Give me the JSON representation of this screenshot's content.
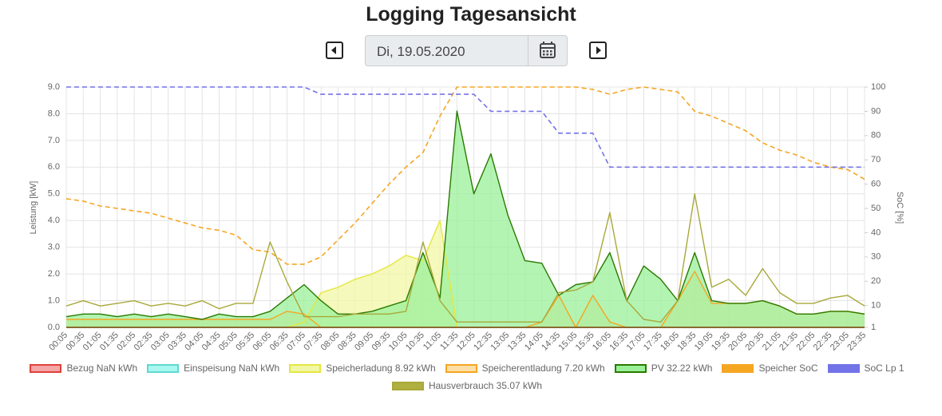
{
  "page": {
    "title": "Logging Tagesansicht",
    "date": "Di, 19.05.2020"
  },
  "chart_data": {
    "type": "line",
    "ylabel": "Leistung [kW]",
    "y2label": "SoC [%]",
    "categories": [
      "00:05",
      "00:35",
      "01:05",
      "01:35",
      "02:05",
      "02:35",
      "03:05",
      "03:35",
      "04:05",
      "04:35",
      "05:05",
      "05:35",
      "06:05",
      "06:35",
      "07:05",
      "07:35",
      "08:05",
      "08:35",
      "09:05",
      "09:35",
      "10:05",
      "10:35",
      "11:05",
      "11:35",
      "12:05",
      "12:35",
      "13:05",
      "13:35",
      "14:05",
      "14:35",
      "15:05",
      "15:35",
      "16:05",
      "16:35",
      "17:05",
      "17:35",
      "18:05",
      "18:35",
      "19:05",
      "19:35",
      "20:05",
      "20:35",
      "21:05",
      "21:35",
      "22:05",
      "22:35",
      "23:05",
      "23:35"
    ],
    "ylim": [
      0,
      9
    ],
    "yticks": [
      {
        "value": 0,
        "label": "0.0"
      },
      {
        "value": 1,
        "label": "1.0"
      },
      {
        "value": 2,
        "label": "2.0"
      },
      {
        "value": 3,
        "label": "3.0"
      },
      {
        "value": 4,
        "label": "4.0"
      },
      {
        "value": 5,
        "label": "5.0"
      },
      {
        "value": 6,
        "label": "6.0"
      },
      {
        "value": 7,
        "label": "7.0"
      },
      {
        "value": 8,
        "label": "8.0"
      },
      {
        "value": 9,
        "label": "9.0"
      }
    ],
    "y2lim": [
      1,
      100
    ],
    "y2ticks": [
      100,
      90,
      80,
      70,
      60,
      50,
      40,
      30,
      20,
      10,
      1
    ],
    "grid": true,
    "series": [
      {
        "name": "Bezug NaN kWh",
        "color": "#e0413a",
        "fill_color": "#f5a6a6",
        "fill": true,
        "dash": false,
        "values": [
          0,
          0,
          0,
          0,
          0,
          0,
          0,
          0,
          0,
          0,
          0,
          0,
          0,
          0,
          0,
          0,
          0,
          0,
          0,
          0,
          0,
          0,
          0,
          0,
          0,
          0,
          0,
          0,
          0,
          0,
          0,
          0,
          0,
          0,
          0,
          0,
          0,
          0,
          0,
          0,
          0,
          0,
          0,
          0,
          0,
          0,
          0,
          0
        ]
      },
      {
        "name": "Einspeisung NaN kWh",
        "color": "#5fd8d0",
        "fill_color": "#a8f7f0",
        "fill": true,
        "dash": false,
        "values": [
          0,
          0,
          0,
          0,
          0,
          0,
          0,
          0,
          0,
          0,
          0,
          0,
          0,
          0,
          0,
          0,
          0,
          0,
          0,
          0,
          0,
          0,
          0,
          0,
          0,
          0,
          0,
          0,
          0,
          0,
          0,
          0,
          0,
          0,
          0,
          0,
          0,
          0,
          0,
          0,
          0,
          0,
          0,
          0,
          0,
          0,
          0,
          0
        ]
      },
      {
        "name": "Speicherladung 8.92 kWh",
        "color": "#e6e640",
        "fill_color": "#f1f7a4",
        "fill": true,
        "dash": false,
        "values": [
          0,
          0,
          0,
          0,
          0,
          0,
          0,
          0,
          0,
          0,
          0,
          0,
          0,
          0,
          0.2,
          1.3,
          1.5,
          1.8,
          2.0,
          2.3,
          2.7,
          2.5,
          4.0,
          0,
          0,
          0,
          0,
          0,
          0,
          0,
          0,
          0,
          0,
          0,
          0,
          0,
          0,
          0,
          0,
          0,
          0,
          0,
          0,
          0,
          0,
          0,
          0,
          0
        ]
      },
      {
        "name": "Speicherentladung 7.20 kWh",
        "color": "#f5a623",
        "fill_color": "#fddfa6",
        "fill": true,
        "dash": false,
        "values": [
          0.3,
          0.3,
          0.3,
          0.3,
          0.3,
          0.3,
          0.3,
          0.3,
          0.3,
          0.3,
          0.3,
          0.3,
          0.3,
          0.6,
          0.5,
          0,
          0,
          0,
          0,
          0,
          0,
          0,
          0,
          0,
          0,
          0,
          0,
          0,
          0.2,
          1.2,
          0,
          1.2,
          0.2,
          0,
          0,
          0,
          1.0,
          2.1,
          0.9,
          0.9,
          0.9,
          1.0,
          0.8,
          0.5,
          0.5,
          0.6,
          0.6,
          0.5
        ]
      },
      {
        "name": "PV 32.22 kWh",
        "color": "#2a7a00",
        "fill_color": "#99f099",
        "fill": true,
        "dash": false,
        "values": [
          0.4,
          0.5,
          0.5,
          0.4,
          0.5,
          0.4,
          0.5,
          0.4,
          0.3,
          0.5,
          0.4,
          0.4,
          0.6,
          1.1,
          1.6,
          1.0,
          0.5,
          0.5,
          0.6,
          0.8,
          1.0,
          2.8,
          1.1,
          8.1,
          5.0,
          6.5,
          4.2,
          2.5,
          2.4,
          1.2,
          1.6,
          1.7,
          2.8,
          1.0,
          2.3,
          1.8,
          1.0,
          2.8,
          1.0,
          0.9,
          0.9,
          1.0,
          0.8,
          0.5,
          0.5,
          0.6,
          0.6,
          0.5
        ]
      },
      {
        "name": "Speicher SoC",
        "color": "#f5a623",
        "fill_color": "#f5a623",
        "fill": false,
        "dash": true,
        "axis": "y2",
        "values": [
          54,
          53,
          51,
          50,
          49,
          48,
          46,
          44,
          42,
          41,
          39,
          33,
          32,
          27,
          27,
          30,
          37,
          44,
          52,
          60,
          67,
          73,
          88,
          100,
          100,
          100,
          100,
          100,
          100,
          100,
          100,
          99,
          97,
          99,
          100,
          99,
          98,
          90,
          88,
          85,
          82,
          77,
          74,
          72,
          69,
          67,
          66,
          62
        ]
      },
      {
        "name": "SoC Lp 1",
        "color": "#7373e8",
        "fill_color": "#7373e8",
        "fill": false,
        "dash": true,
        "axis": "y2",
        "values": [
          100,
          100,
          100,
          100,
          100,
          100,
          100,
          100,
          100,
          100,
          100,
          100,
          100,
          100,
          100,
          97,
          97,
          97,
          97,
          97,
          97,
          97,
          97,
          97,
          97,
          90,
          90,
          90,
          90,
          81,
          81,
          81,
          67,
          67,
          67,
          67,
          67,
          67,
          67,
          67,
          67,
          67,
          67,
          67,
          67,
          67,
          67,
          67
        ]
      },
      {
        "name": "Hausverbrauch 35.07 kWh",
        "color": "#a8a83a",
        "fill_color": "#b0b040",
        "fill": false,
        "dash": false,
        "values": [
          0.8,
          1.0,
          0.8,
          0.9,
          1.0,
          0.8,
          0.9,
          0.8,
          1.0,
          0.7,
          0.9,
          0.9,
          3.2,
          1.7,
          0.4,
          0.4,
          0.4,
          0.5,
          0.5,
          0.5,
          0.6,
          3.2,
          1.0,
          0.2,
          0.2,
          0.2,
          0.2,
          0.2,
          0.2,
          1.3,
          1.4,
          1.7,
          4.3,
          1.0,
          0.3,
          0.2,
          1.0,
          5.0,
          1.5,
          1.8,
          1.2,
          2.2,
          1.3,
          0.9,
          0.9,
          1.1,
          1.2,
          0.8
        ]
      }
    ]
  }
}
